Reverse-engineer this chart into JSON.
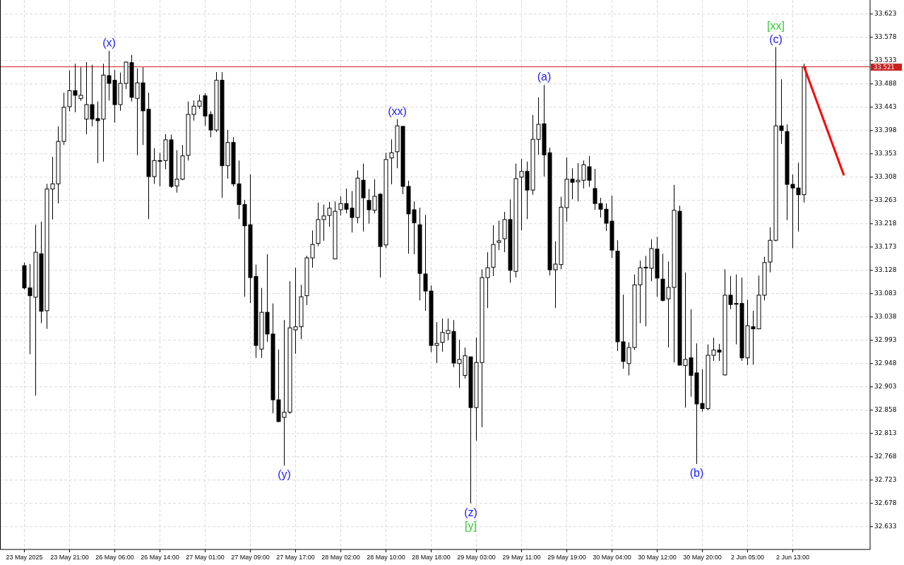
{
  "chart_data": {
    "type": "candlestick",
    "color": "#000000",
    "categories": [
      "23 May 2025",
      null,
      null,
      null,
      null,
      null,
      null,
      null,
      "23 May 21:00",
      null,
      null,
      null,
      null,
      null,
      null,
      null,
      "26 May 06:00",
      null,
      null,
      null,
      null,
      null,
      null,
      null,
      "26 May 14:00",
      null,
      null,
      null,
      null,
      null,
      null,
      null,
      "27 May 01:00",
      null,
      null,
      null,
      null,
      null,
      null,
      null,
      "27 May 09:00",
      null,
      null,
      null,
      null,
      null,
      null,
      null,
      "27 May 17:00",
      null,
      null,
      null,
      null,
      null,
      null,
      null,
      "28 May 02:00",
      null,
      null,
      null,
      null,
      null,
      null,
      null,
      "28 May 10:00",
      null,
      null,
      null,
      null,
      null,
      null,
      null,
      "28 May 18:00",
      null,
      null,
      null,
      null,
      null,
      null,
      null,
      "29 May 03:00",
      null,
      null,
      null,
      null,
      null,
      null,
      null,
      "29 May 11:00",
      null,
      null,
      null,
      null,
      null,
      null,
      null,
      "29 May 19:00",
      null,
      null,
      null,
      null,
      null,
      null,
      null,
      "30 May 04:00",
      null,
      null,
      null,
      null,
      null,
      null,
      null,
      "30 May 12:00",
      null,
      null,
      null,
      null,
      null,
      null,
      null,
      "30 May 20:00",
      null,
      null,
      null,
      null,
      null,
      null,
      null,
      "2 Jun 05:00",
      null,
      null,
      null,
      null,
      null,
      null,
      null,
      "2 Jun 13:00",
      null,
      null,
      null,
      null,
      null,
      null,
      null,
      null,
      null,
      null,
      null,
      null,
      null
    ],
    "ohlc": [
      [
        33.137,
        33.143,
        33.091,
        33.094
      ],
      [
        33.094,
        33.14,
        32.966,
        33.079
      ],
      [
        33.076,
        33.216,
        32.886,
        33.163
      ],
      [
        33.16,
        33.222,
        33.026,
        33.049
      ],
      [
        33.05,
        33.295,
        33.015,
        33.285
      ],
      [
        33.285,
        33.347,
        33.226,
        33.295
      ],
      [
        33.295,
        33.406,
        33.257,
        33.377
      ],
      [
        33.377,
        33.471,
        33.37,
        33.443
      ],
      [
        33.444,
        33.514,
        33.435,
        33.475
      ],
      [
        33.475,
        33.527,
        33.433,
        33.466
      ],
      [
        33.46,
        33.52,
        33.455,
        33.466
      ],
      [
        33.42,
        33.53,
        33.391,
        33.448
      ],
      [
        33.448,
        33.525,
        33.406,
        33.42
      ],
      [
        33.421,
        33.454,
        33.335,
        33.417
      ],
      [
        33.42,
        33.527,
        33.338,
        33.505
      ],
      [
        33.504,
        33.552,
        33.456,
        33.489
      ],
      [
        33.495,
        33.515,
        33.413,
        33.448
      ],
      [
        33.448,
        33.51,
        33.436,
        33.489
      ],
      [
        33.489,
        33.531,
        33.478,
        33.53
      ],
      [
        33.529,
        33.544,
        33.454,
        33.462
      ],
      [
        33.46,
        33.518,
        33.35,
        33.49
      ],
      [
        33.49,
        33.52,
        33.37,
        33.436
      ],
      [
        33.439,
        33.471,
        33.227,
        33.309
      ],
      [
        33.309,
        33.364,
        33.295,
        33.34
      ],
      [
        33.34,
        33.355,
        33.29,
        33.34
      ],
      [
        33.34,
        33.391,
        33.323,
        33.38
      ],
      [
        33.38,
        33.39,
        33.287,
        33.29
      ],
      [
        33.291,
        33.36,
        33.278,
        33.304
      ],
      [
        33.304,
        33.37,
        33.302,
        33.349
      ],
      [
        33.35,
        33.454,
        33.34,
        33.429
      ],
      [
        33.429,
        33.456,
        33.417,
        33.445
      ],
      [
        33.445,
        33.467,
        33.44,
        33.455
      ],
      [
        33.465,
        33.47,
        33.407,
        33.426
      ],
      [
        33.429,
        33.435,
        33.385,
        33.399
      ],
      [
        33.399,
        33.511,
        33.395,
        33.495
      ],
      [
        33.495,
        33.511,
        33.268,
        33.33
      ],
      [
        33.33,
        33.399,
        33.305,
        33.375
      ],
      [
        33.375,
        33.385,
        33.29,
        33.295
      ],
      [
        33.295,
        33.34,
        33.227,
        33.255
      ],
      [
        33.255,
        33.264,
        33.077,
        33.214
      ],
      [
        33.216,
        33.313,
        33.065,
        33.114
      ],
      [
        33.116,
        33.139,
        32.959,
        32.983
      ],
      [
        32.976,
        33.094,
        32.959,
        33.047
      ],
      [
        33.047,
        33.159,
        32.99,
        33.005
      ],
      [
        33.005,
        33.064,
        32.852,
        32.878
      ],
      [
        32.878,
        32.975,
        32.835,
        32.836
      ],
      [
        32.844,
        33.032,
        32.751,
        32.854
      ],
      [
        32.854,
        33.107,
        32.851,
        33.017
      ],
      [
        33.013,
        33.133,
        32.967,
        33.019
      ],
      [
        33.019,
        33.1,
        32.995,
        33.077
      ],
      [
        33.079,
        33.156,
        33.061,
        33.152
      ],
      [
        33.152,
        33.205,
        33.133,
        33.178
      ],
      [
        33.18,
        33.259,
        33.175,
        33.226
      ],
      [
        33.226,
        33.255,
        33.185,
        33.233
      ],
      [
        33.234,
        33.26,
        33.212,
        33.248
      ],
      [
        33.15,
        33.261,
        33.15,
        33.242
      ],
      [
        33.245,
        33.271,
        33.234,
        33.257
      ],
      [
        33.257,
        33.286,
        33.238,
        33.246
      ],
      [
        33.248,
        33.281,
        33.201,
        33.23
      ],
      [
        33.23,
        33.321,
        33.219,
        33.306
      ],
      [
        33.302,
        33.334,
        33.203,
        33.268
      ],
      [
        33.263,
        33.285,
        33.218,
        33.245
      ],
      [
        33.244,
        33.304,
        33.238,
        33.271
      ],
      [
        33.275,
        33.277,
        33.114,
        33.174
      ],
      [
        33.177,
        33.355,
        33.171,
        33.342
      ],
      [
        33.345,
        33.381,
        33.294,
        33.355
      ],
      [
        33.357,
        33.42,
        33.325,
        33.407
      ],
      [
        33.406,
        33.406,
        33.275,
        33.29
      ],
      [
        33.29,
        33.301,
        33.16,
        33.237
      ],
      [
        33.245,
        33.261,
        33.159,
        33.22
      ],
      [
        33.216,
        33.249,
        33.07,
        33.122
      ],
      [
        33.121,
        33.235,
        33.05,
        33.088
      ],
      [
        33.088,
        33.099,
        32.97,
        32.983
      ],
      [
        32.983,
        33.028,
        32.949,
        32.987
      ],
      [
        32.989,
        33.035,
        32.971,
        33.008
      ],
      [
        33.006,
        33.035,
        32.993,
        33.012
      ],
      [
        33.01,
        33.032,
        32.941,
        32.949
      ],
      [
        32.948,
        32.994,
        32.901,
        32.956
      ],
      [
        32.925,
        32.979,
        32.919,
        32.963
      ],
      [
        32.961,
        32.961,
        32.678,
        32.863
      ],
      [
        32.863,
        32.998,
        32.799,
        32.95
      ],
      [
        32.95,
        33.13,
        32.825,
        33.114
      ],
      [
        33.114,
        33.163,
        33.055,
        33.133
      ],
      [
        33.134,
        33.215,
        33.117,
        33.178
      ],
      [
        33.182,
        33.224,
        33.167,
        33.185
      ],
      [
        33.189,
        33.241,
        33.163,
        33.226
      ],
      [
        33.226,
        33.265,
        33.104,
        33.128
      ],
      [
        33.126,
        33.334,
        33.114,
        33.305
      ],
      [
        33.308,
        33.343,
        33.205,
        33.319
      ],
      [
        33.319,
        33.338,
        33.227,
        33.283
      ],
      [
        33.283,
        33.428,
        33.274,
        33.381
      ],
      [
        33.381,
        33.462,
        33.351,
        33.41
      ],
      [
        33.411,
        33.486,
        33.309,
        33.351
      ],
      [
        33.355,
        33.365,
        33.118,
        33.129
      ],
      [
        33.129,
        33.184,
        33.055,
        33.14
      ],
      [
        33.139,
        33.27,
        33.13,
        33.25
      ],
      [
        33.249,
        33.346,
        33.222,
        33.304
      ],
      [
        33.304,
        33.325,
        33.265,
        33.298
      ],
      [
        33.299,
        33.335,
        33.261,
        33.302
      ],
      [
        33.302,
        33.34,
        33.286,
        33.332
      ],
      [
        33.328,
        33.349,
        33.289,
        33.302
      ],
      [
        33.286,
        33.324,
        33.245,
        33.257
      ],
      [
        33.257,
        33.268,
        33.23,
        33.246
      ],
      [
        33.246,
        33.257,
        33.204,
        33.219
      ],
      [
        33.223,
        33.272,
        33.152,
        33.167
      ],
      [
        33.165,
        33.186,
        32.972,
        32.99
      ],
      [
        32.99,
        33.081,
        32.938,
        32.952
      ],
      [
        32.948,
        32.989,
        32.925,
        32.979
      ],
      [
        32.979,
        33.12,
        32.974,
        33.1
      ],
      [
        33.1,
        33.147,
        33.026,
        33.133
      ],
      [
        33.134,
        33.156,
        33.02,
        33.134
      ],
      [
        33.132,
        33.188,
        33.107,
        33.17
      ],
      [
        33.169,
        33.193,
        33.077,
        33.113
      ],
      [
        33.111,
        33.16,
        33.068,
        33.07
      ],
      [
        33.073,
        33.145,
        32.979,
        33.095
      ],
      [
        33.095,
        33.293,
        32.95,
        33.244
      ],
      [
        33.242,
        33.253,
        32.944,
        32.945
      ],
      [
        32.944,
        33.124,
        32.863,
        32.956
      ],
      [
        32.959,
        33.053,
        32.884,
        32.925
      ],
      [
        32.93,
        32.987,
        32.754,
        32.87
      ],
      [
        32.871,
        32.937,
        32.855,
        32.861
      ],
      [
        32.861,
        32.985,
        32.858,
        32.964
      ],
      [
        32.964,
        32.998,
        32.953,
        32.974
      ],
      [
        32.974,
        32.986,
        32.953,
        32.97
      ],
      [
        32.926,
        33.13,
        32.925,
        33.08
      ],
      [
        33.08,
        33.117,
        33.053,
        33.062
      ],
      [
        33.064,
        33.12,
        32.985,
        33.064
      ],
      [
        33.064,
        33.114,
        32.953,
        32.959
      ],
      [
        32.959,
        33.071,
        32.945,
        33.021
      ],
      [
        33.019,
        33.05,
        32.946,
        33.015
      ],
      [
        33.015,
        33.118,
        33.015,
        33.08
      ],
      [
        33.08,
        33.154,
        33.07,
        33.143
      ],
      [
        33.144,
        33.211,
        33.124,
        33.186
      ],
      [
        33.186,
        33.559,
        33.184,
        33.407
      ],
      [
        33.407,
        33.497,
        33.372,
        33.398
      ],
      [
        33.396,
        33.41,
        33.225,
        33.294
      ],
      [
        33.294,
        33.313,
        33.171,
        33.287
      ],
      [
        33.287,
        33.336,
        33.203,
        33.274
      ],
      [
        33.274,
        33.527,
        33.259,
        33.521
      ],
      null,
      null,
      null,
      null,
      null,
      null,
      null,
      null,
      null,
      null,
      null
    ],
    "series": [
      {
        "type": "line",
        "color": "#ff0000",
        "values": [
          null,
          null,
          null,
          null,
          null,
          null,
          null,
          null,
          null,
          null,
          null,
          null,
          null,
          null,
          null,
          null,
          null,
          null,
          null,
          null,
          null,
          null,
          null,
          null,
          null,
          null,
          null,
          null,
          null,
          null,
          null,
          null,
          null,
          null,
          null,
          null,
          null,
          null,
          null,
          null,
          null,
          null,
          null,
          null,
          null,
          null,
          null,
          null,
          null,
          null,
          null,
          null,
          null,
          null,
          null,
          null,
          null,
          null,
          null,
          null,
          null,
          null,
          null,
          null,
          null,
          null,
          null,
          null,
          null,
          null,
          null,
          null,
          null,
          null,
          null,
          null,
          null,
          null,
          null,
          null,
          null,
          null,
          null,
          null,
          null,
          null,
          null,
          null,
          null,
          null,
          null,
          null,
          null,
          null,
          null,
          null,
          null,
          null,
          null,
          null,
          null,
          null,
          null,
          null,
          null,
          null,
          null,
          null,
          null,
          null,
          null,
          null,
          null,
          null,
          null,
          null,
          null,
          null,
          null,
          null,
          null,
          null,
          null,
          null,
          null,
          null,
          null,
          null,
          null,
          null,
          null,
          null,
          null,
          null,
          null,
          null,
          null,
          null,
          33.521,
          null,
          null,
          null,
          null,
          null,
          null,
          33.313,
          null,
          null,
          null,
          null
        ]
      }
    ],
    "ylim": [
      32.589,
      33.65
    ],
    "yticks": [
      32.633,
      32.678,
      32.723,
      32.768,
      32.813,
      32.858,
      32.903,
      32.948,
      32.993,
      33.038,
      33.083,
      33.128,
      33.173,
      33.218,
      33.263,
      33.308,
      33.353,
      33.398,
      33.443,
      33.488,
      33.533,
      33.578,
      33.623
    ],
    "grid": true,
    "ref_lines": [
      {
        "axis": "y",
        "value": 33.521,
        "label": "33.521",
        "color": "#cc1f1f"
      }
    ],
    "annotations": [
      {
        "text": "(x)",
        "y": 33.552
      },
      {
        "text": "(y)",
        "y": 32.751
      },
      {
        "text": "(xx)",
        "y": 33.42
      },
      {
        "text": "(z)",
        "y": 32.678
      },
      {
        "text": "[y]",
        "y": 32.678
      },
      {
        "text": "(a)",
        "y": 33.486
      },
      {
        "text": "(b)",
        "y": 32.754
      },
      {
        "text": "(c)",
        "y": 33.559
      },
      {
        "text": "[xx]",
        "y": 33.559
      }
    ]
  }
}
